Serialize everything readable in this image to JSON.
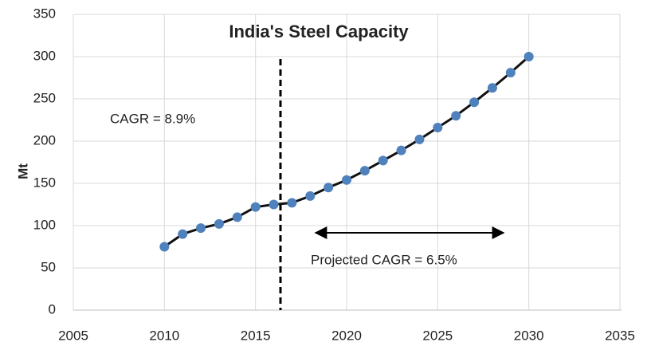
{
  "chart_data": {
    "type": "line",
    "title": "India's Steel Capacity",
    "y_label": "Mt",
    "x": [
      2010,
      2011,
      2012,
      2013,
      2014,
      2015,
      2016,
      2017,
      2018,
      2019,
      2020,
      2021,
      2022,
      2023,
      2024,
      2025,
      2026,
      2027,
      2028,
      2029,
      2030
    ],
    "values": [
      75,
      90,
      97,
      102,
      110,
      122,
      125,
      127,
      135,
      145,
      154,
      165,
      177,
      189,
      202,
      216,
      230,
      246,
      263,
      281,
      300
    ],
    "line_color": "#111111",
    "marker_color": "#4f81bd",
    "xlim": [
      2005,
      2035
    ],
    "xticks": [
      2005,
      2010,
      2015,
      2020,
      2025,
      2030,
      2035
    ],
    "ylim": [
      0,
      350
    ],
    "yticks": [
      0,
      50,
      100,
      150,
      200,
      250,
      300,
      350
    ],
    "grid": true,
    "annotations": [
      "CAGR = 8.9%",
      "Projected CAGR = 6.5%"
    ]
  }
}
